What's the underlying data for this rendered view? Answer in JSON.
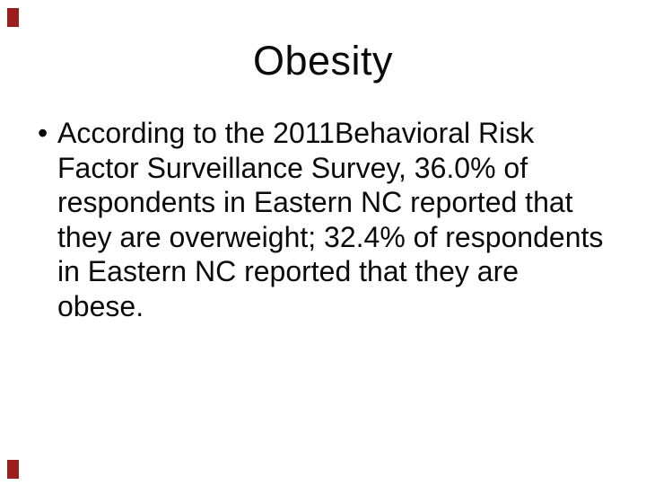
{
  "slide": {
    "title": "Obesity",
    "bullet": {
      "glyph": "•",
      "lines": [
        "According to the 2011Behavioral Risk",
        "Factor Surveillance Survey, 36.0% of",
        "respondents in Eastern NC reported that",
        "they are overweight; 32.4% of respondents",
        "in Eastern NC reported that they are",
        "obese."
      ]
    },
    "decorations": {
      "corner_mark_top_left": "red-rectangle",
      "corner_mark_bottom_left": "red-rectangle"
    },
    "colors": {
      "background": "#ffffff",
      "text": "#0a0a0a",
      "accent": "#9c1d1d"
    }
  }
}
